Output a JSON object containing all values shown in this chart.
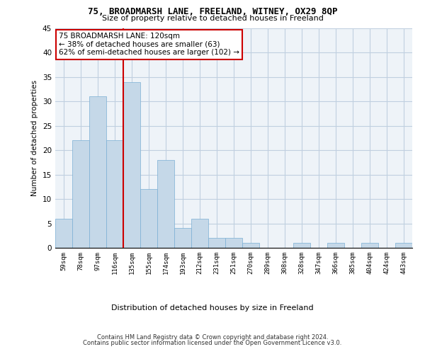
{
  "title1": "75, BROADMARSH LANE, FREELAND, WITNEY, OX29 8QP",
  "title2": "Size of property relative to detached houses in Freeland",
  "xlabel": "Distribution of detached houses by size in Freeland",
  "ylabel": "Number of detached properties",
  "bins": [
    "59sqm",
    "78sqm",
    "97sqm",
    "116sqm",
    "135sqm",
    "155sqm",
    "174sqm",
    "193sqm",
    "212sqm",
    "231sqm",
    "251sqm",
    "270sqm",
    "289sqm",
    "308sqm",
    "328sqm",
    "347sqm",
    "366sqm",
    "385sqm",
    "404sqm",
    "424sqm",
    "443sqm"
  ],
  "values": [
    6,
    22,
    31,
    22,
    34,
    12,
    18,
    4,
    6,
    2,
    2,
    1,
    0,
    0,
    1,
    0,
    1,
    0,
    1,
    0,
    1
  ],
  "bar_color": "#c5d8e8",
  "bar_edge_color": "#7bafd4",
  "grid_color": "#c0cfe0",
  "background_color": "#eef3f8",
  "annotation_text": "75 BROADMARSH LANE: 120sqm\n← 38% of detached houses are smaller (63)\n62% of semi-detached houses are larger (102) →",
  "annotation_box_color": "#ffffff",
  "annotation_edge_color": "#cc0000",
  "footer1": "Contains HM Land Registry data © Crown copyright and database right 2024.",
  "footer2": "Contains public sector information licensed under the Open Government Licence v3.0.",
  "ylim": [
    0,
    45
  ],
  "yticks": [
    0,
    5,
    10,
    15,
    20,
    25,
    30,
    35,
    40,
    45
  ]
}
